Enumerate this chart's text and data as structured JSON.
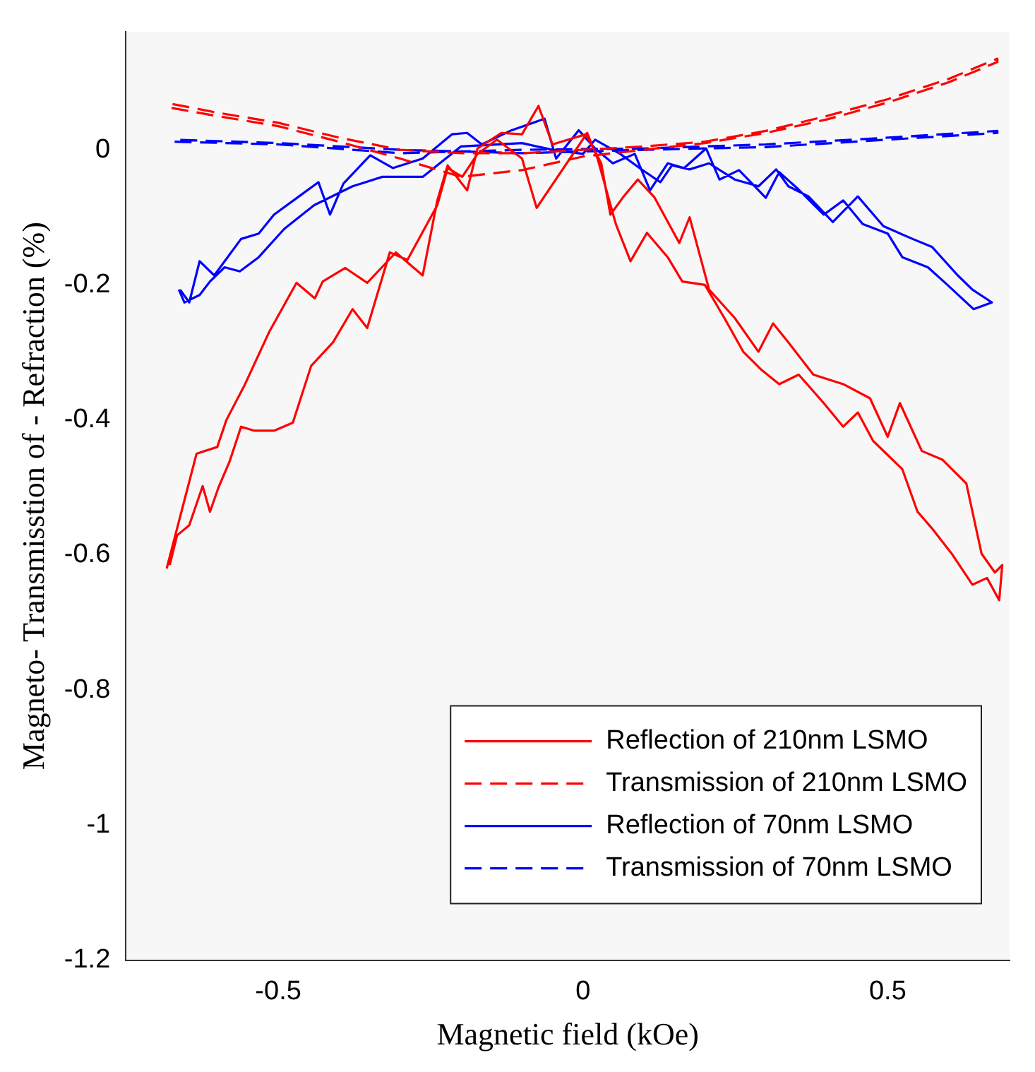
{
  "chart_data": {
    "type": "line",
    "xlabel": "Magnetic field (kOe)",
    "ylabel": "Magneto- Transmisstion of - Refraction (%)",
    "xlim": [
      -0.75,
      0.7
    ],
    "ylim": [
      -1.2,
      0.175
    ],
    "xticks": [
      -0.5,
      0,
      0.5
    ],
    "yticks": [
      -1.2,
      -1,
      -0.8,
      -0.6,
      -0.4,
      -0.2,
      0
    ],
    "legend": "bottom right",
    "series": [
      {
        "name": "Reflection of 210nm LSMO",
        "color": "#ff0000",
        "line_style": "solid",
        "x": [
          -0.683,
          -0.66,
          -0.634,
          -0.6,
          -0.585,
          -0.556,
          -0.515,
          -0.47,
          -0.44,
          -0.427,
          -0.39,
          -0.354,
          -0.307,
          -0.263,
          -0.239,
          -0.222,
          -0.19,
          -0.173,
          -0.134,
          -0.1,
          -0.073,
          -0.05,
          0.005,
          0.03,
          0.045,
          0.066,
          0.09,
          0.117,
          0.158,
          0.175,
          0.207,
          0.249,
          0.288,
          0.312,
          0.337,
          0.378,
          0.427,
          0.471,
          0.5,
          0.52,
          0.556,
          0.59,
          0.629,
          0.654,
          0.676,
          0.688,
          0.683,
          0.663,
          0.639,
          0.605,
          0.573,
          0.549,
          0.524,
          0.476,
          0.451,
          0.427,
          0.395,
          0.354,
          0.322,
          0.293,
          0.263,
          0.232,
          0.2,
          0.163,
          0.139,
          0.105,
          0.078,
          0.054,
          0.024,
          0.007,
          -0.076,
          -0.1,
          -0.141,
          -0.173,
          -0.198,
          -0.222,
          -0.239,
          -0.288,
          -0.317,
          -0.354,
          -0.378,
          -0.41,
          -0.446,
          -0.476,
          -0.507,
          -0.539,
          -0.561,
          -0.58,
          -0.598,
          -0.612,
          -0.624,
          -0.646,
          -0.666,
          -0.678
        ],
        "values": [
          -0.62,
          -0.54,
          -0.45,
          -0.44,
          -0.4,
          -0.35,
          -0.27,
          -0.197,
          -0.22,
          -0.195,
          -0.175,
          -0.197,
          -0.152,
          -0.186,
          -0.075,
          -0.023,
          -0.06,
          0.002,
          0.025,
          0.023,
          0.065,
          0.008,
          0.023,
          -0.02,
          -0.096,
          -0.07,
          -0.044,
          -0.07,
          -0.138,
          -0.1,
          -0.207,
          -0.249,
          -0.299,
          -0.257,
          -0.285,
          -0.333,
          -0.347,
          -0.368,
          -0.425,
          -0.375,
          -0.446,
          -0.459,
          -0.494,
          -0.598,
          -0.626,
          -0.615,
          -0.667,
          -0.634,
          -0.644,
          -0.598,
          -0.561,
          -0.536,
          -0.473,
          -0.431,
          -0.389,
          -0.41,
          -0.375,
          -0.333,
          -0.347,
          -0.326,
          -0.299,
          -0.249,
          -0.2,
          -0.195,
          -0.159,
          -0.123,
          -0.165,
          -0.11,
          -0.013,
          0.025,
          -0.086,
          -0.013,
          0.015,
          -0.006,
          -0.04,
          -0.027,
          -0.082,
          -0.163,
          -0.152,
          -0.264,
          -0.236,
          -0.285,
          -0.32,
          -0.404,
          -0.416,
          -0.416,
          -0.41,
          -0.462,
          -0.5,
          -0.536,
          -0.498,
          -0.556,
          -0.571,
          -0.615
        ]
      },
      {
        "name": "Transmission of 210nm LSMO",
        "color": "#ff0000",
        "line_style": "dashed",
        "x": [
          -0.675,
          -0.6,
          -0.5,
          -0.4,
          -0.3,
          -0.2,
          -0.1,
          0,
          0.1,
          0.2,
          0.3,
          0.4,
          0.5,
          0.6,
          0.68,
          0.68,
          0.6,
          0.5,
          0.4,
          0.3,
          0.2,
          0.1,
          0,
          -0.1,
          -0.2,
          -0.3,
          -0.4,
          -0.5,
          -0.6,
          -0.675
        ],
        "values": [
          0.062,
          0.05,
          0.035,
          0.012,
          -0.013,
          -0.04,
          -0.03,
          -0.01,
          0,
          0.01,
          0.025,
          0.045,
          0.07,
          0.1,
          0.13,
          0.135,
          0.105,
          0.075,
          0.05,
          0.028,
          0.012,
          0.005,
          0,
          -0.005,
          -0.005,
          0,
          0.018,
          0.04,
          0.055,
          0.068
        ]
      },
      {
        "name": "Reflection of 70nm LSMO",
        "color": "#0000ff",
        "line_style": "solid",
        "x": [
          -0.661,
          -0.646,
          -0.629,
          -0.605,
          -0.561,
          -0.532,
          -0.507,
          -0.466,
          -0.434,
          -0.415,
          -0.393,
          -0.349,
          -0.312,
          -0.263,
          -0.215,
          -0.19,
          -0.166,
          -0.117,
          -0.063,
          -0.044,
          -0.007,
          0.02,
          0.049,
          0.085,
          0.11,
          0.139,
          0.166,
          0.202,
          0.224,
          0.256,
          0.3,
          0.322,
          0.354,
          0.395,
          0.427,
          0.459,
          0.5,
          0.524,
          0.566,
          0.598,
          0.641,
          0.671,
          0.639,
          0.615,
          0.573,
          0.541,
          0.493,
          0.451,
          0.41,
          0.37,
          0.337,
          0.317,
          0.288,
          0.249,
          0.207,
          0.175,
          0.146,
          0.127,
          0.093,
          0.061,
          0.02,
          0,
          -0.05,
          -0.1,
          -0.2,
          -0.263,
          -0.329,
          -0.378,
          -0.441,
          -0.49,
          -0.532,
          -0.563,
          -0.588,
          -0.612,
          -0.629,
          -0.654,
          -0.663
        ],
        "values": [
          -0.207,
          -0.226,
          -0.165,
          -0.186,
          -0.132,
          -0.124,
          -0.096,
          -0.069,
          -0.048,
          -0.096,
          -0.05,
          -0.008,
          -0.027,
          -0.013,
          0.023,
          0.025,
          0.008,
          0.029,
          0.046,
          -0.013,
          0.029,
          0.002,
          -0.02,
          -0.006,
          -0.06,
          -0.02,
          -0.027,
          0.002,
          -0.044,
          -0.03,
          -0.071,
          -0.033,
          -0.059,
          -0.096,
          -0.075,
          -0.11,
          -0.124,
          -0.159,
          -0.174,
          -0.2,
          -0.236,
          -0.226,
          -0.207,
          -0.186,
          -0.144,
          -0.132,
          -0.113,
          -0.069,
          -0.107,
          -0.069,
          -0.054,
          -0.029,
          -0.054,
          -0.044,
          -0.02,
          -0.029,
          -0.023,
          -0.048,
          -0.027,
          -0.006,
          0.015,
          -0.006,
          0,
          0.01,
          0.005,
          -0.04,
          -0.04,
          -0.054,
          -0.082,
          -0.117,
          -0.159,
          -0.18,
          -0.174,
          -0.195,
          -0.215,
          -0.226,
          -0.207
        ]
      },
      {
        "name": "Transmission of 70nm LSMO",
        "color": "#0000ff",
        "line_style": "dashed",
        "x": [
          -0.67,
          -0.5,
          -0.3,
          -0.1,
          0.1,
          0.3,
          0.5,
          0.68,
          0.68,
          0.5,
          0.3,
          0.1,
          -0.1,
          -0.3,
          -0.5,
          -0.67
        ],
        "values": [
          0.012,
          0.008,
          -0.005,
          0,
          0.002,
          0.008,
          0.018,
          0.028,
          0.025,
          0.015,
          0.004,
          0,
          -0.005,
          0,
          0.01,
          0.015
        ]
      }
    ]
  }
}
